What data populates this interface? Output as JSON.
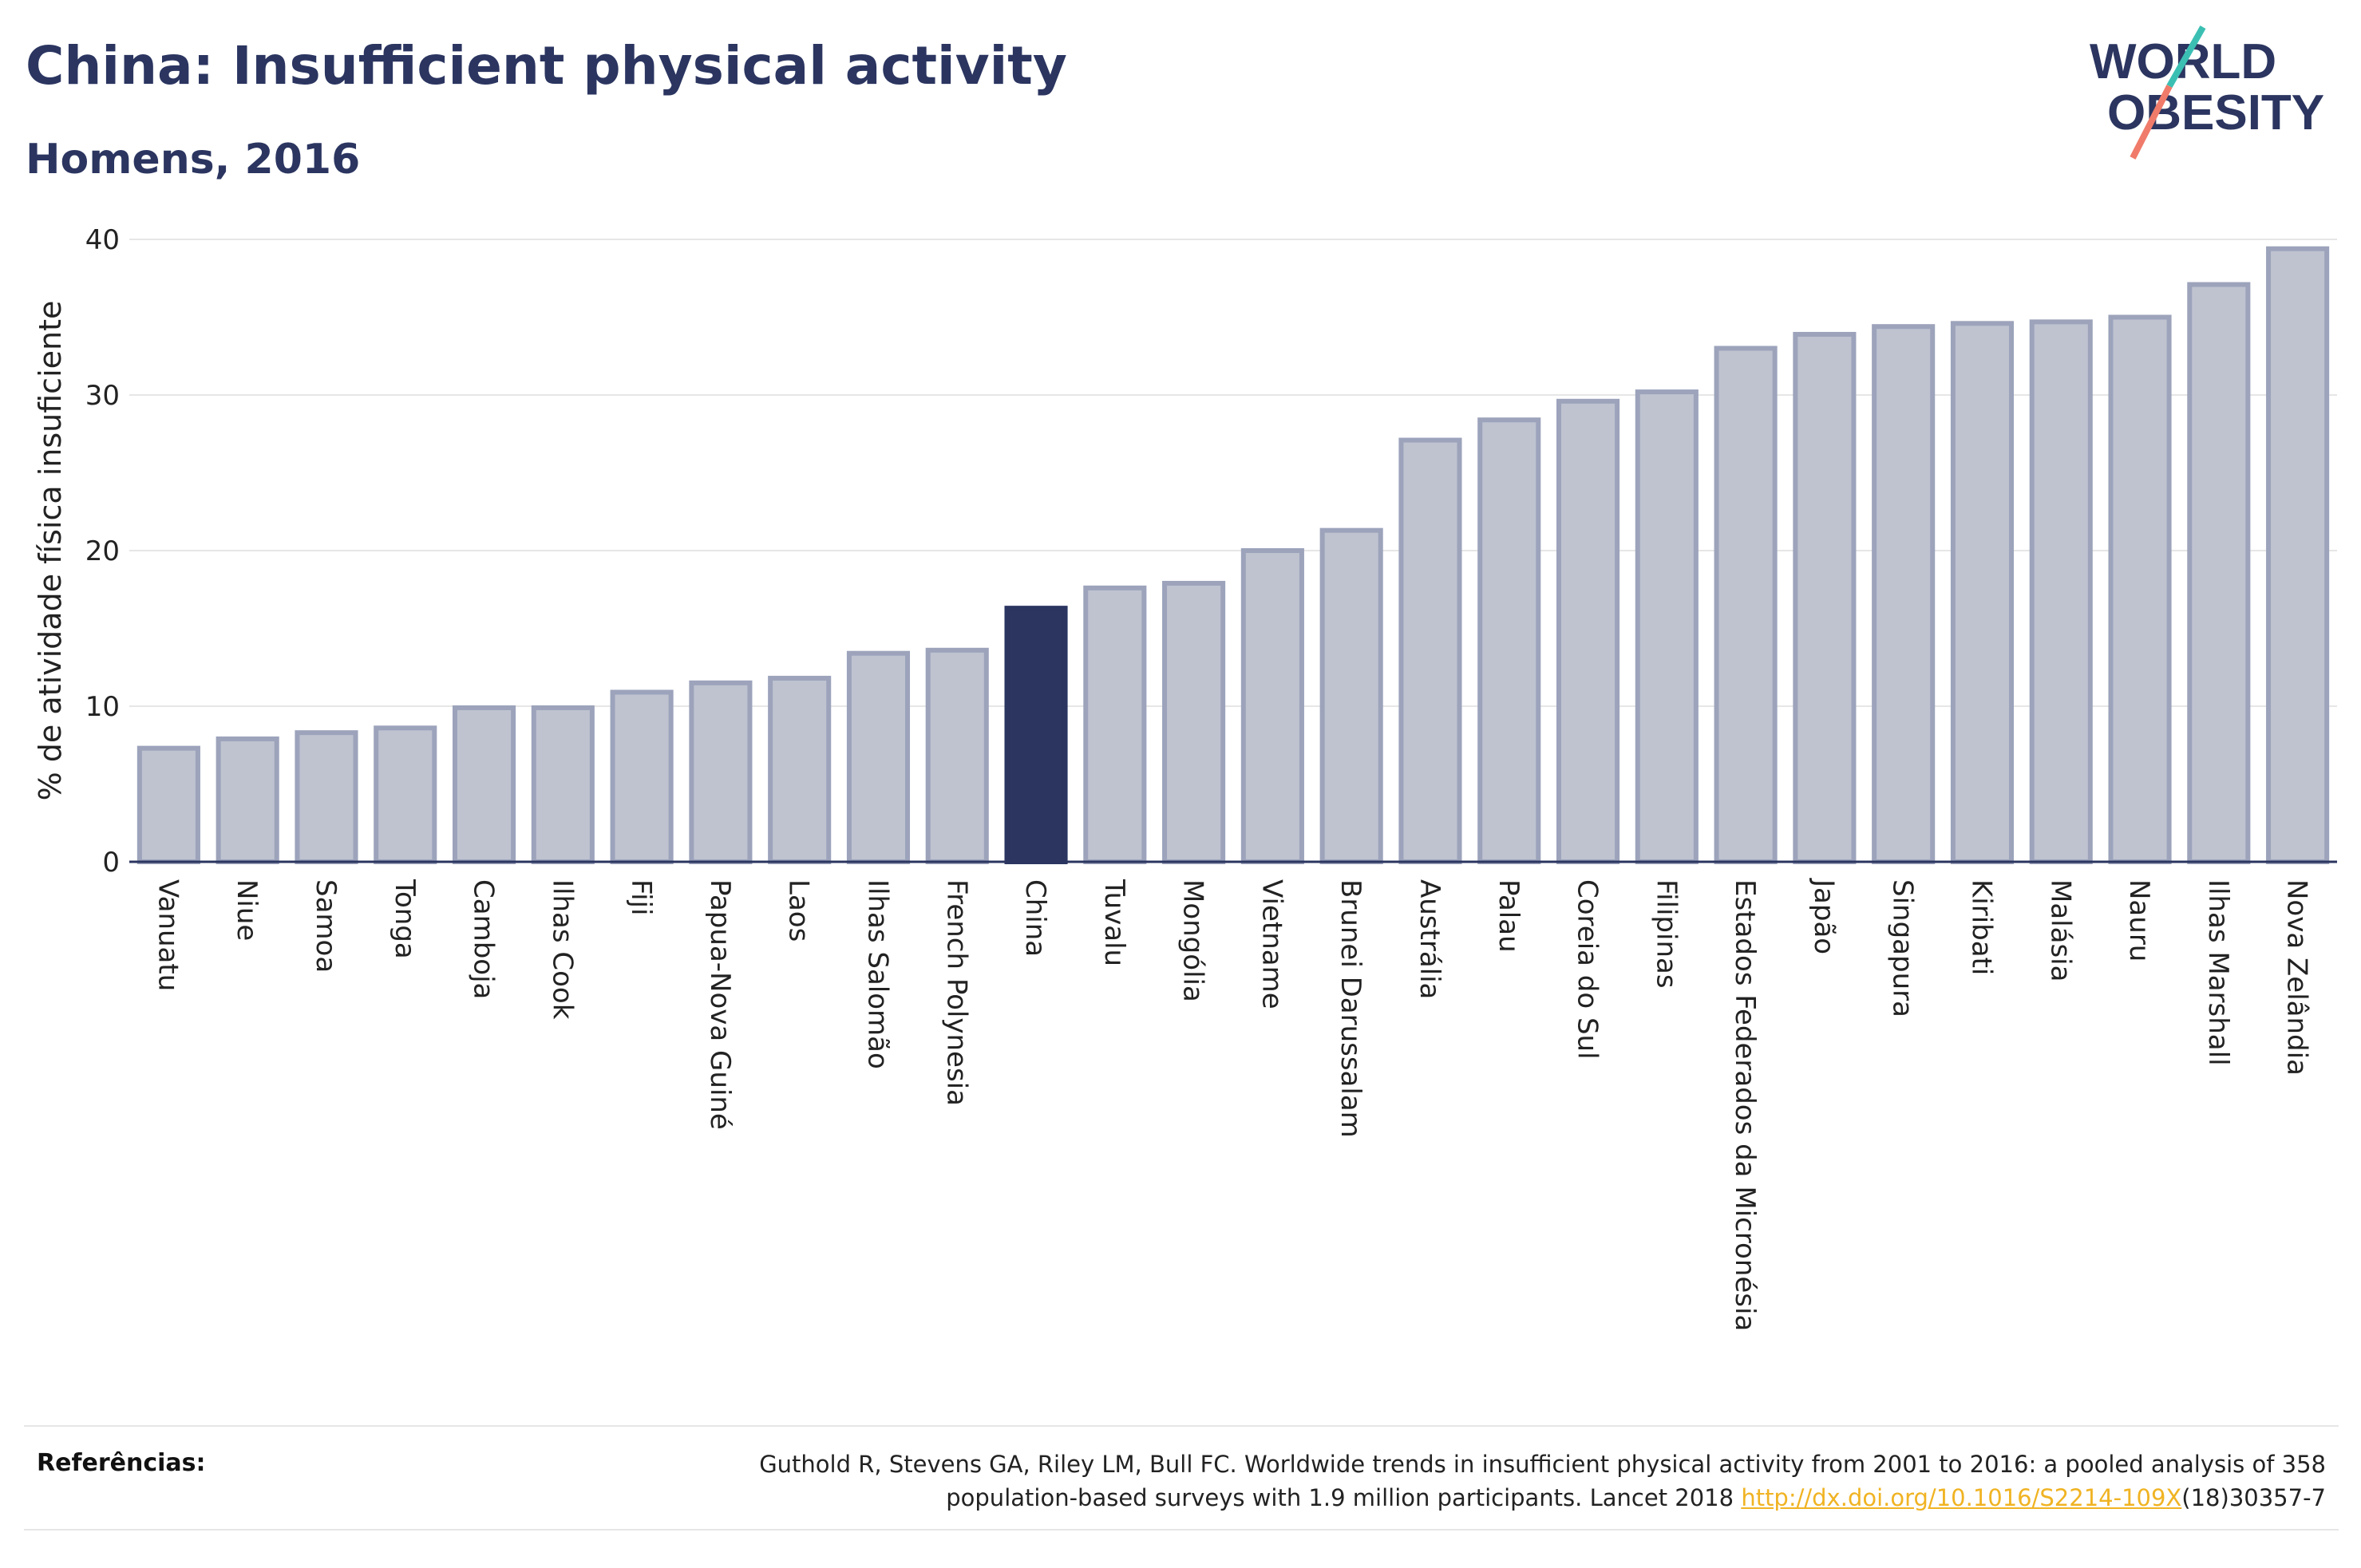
{
  "header": {
    "title": "China: Insufficient physical activity",
    "subtitle": "Homens, 2016"
  },
  "logo": {
    "line1": "WORLD",
    "line2": "OBESITY"
  },
  "chart_data": {
    "type": "bar",
    "ylabel": "% de atividade física insuficiente",
    "ylim": [
      0,
      40
    ],
    "yticks": [
      0,
      10,
      20,
      30,
      40
    ],
    "grid": true,
    "highlight": "China",
    "colors": {
      "bar": "#bfc3d0",
      "bar_stroke": "#9ca3bb",
      "highlight": "#2b3560"
    },
    "categories": [
      "Vanuatu",
      "Niue",
      "Samoa",
      "Tonga",
      "Camboja",
      "Ilhas Cook",
      "Fiji",
      "Papua-Nova Guiné",
      "Laos",
      "Ilhas Salomão",
      "French Polynesia",
      "China",
      "Tuvalu",
      "Mongólia",
      "Vietname",
      "Brunei Darussalam",
      "Austrália",
      "Palau",
      "Coreia do Sul",
      "Filipinas",
      "Estados Federados da Micronésia",
      "Japão",
      "Singapura",
      "Kiribati",
      "Malásia",
      "Nauru",
      "Ilhas Marshall",
      "Nova Zelândia"
    ],
    "values": [
      7.3,
      7.9,
      8.3,
      8.6,
      9.9,
      9.9,
      10.9,
      11.5,
      11.8,
      13.4,
      13.6,
      16.3,
      17.6,
      17.9,
      20.0,
      21.3,
      27.1,
      28.4,
      29.6,
      30.2,
      33.0,
      33.9,
      34.4,
      34.6,
      34.7,
      35.0,
      37.1,
      39.4
    ]
  },
  "footer": {
    "label": "Referências:",
    "text_line1": "Guthold R, Stevens GA, Riley LM, Bull FC. Worldwide trends in insufficient physical activity from 2001 to 2016: a pooled analysis of 358",
    "text_line2_prefix": "population-based surveys with 1.9 million participants. Lancet 2018 ",
    "link": "http://dx.doi.org/10.1016/S2214-109X",
    "text_line2_suffix": "(18)30357-7"
  }
}
